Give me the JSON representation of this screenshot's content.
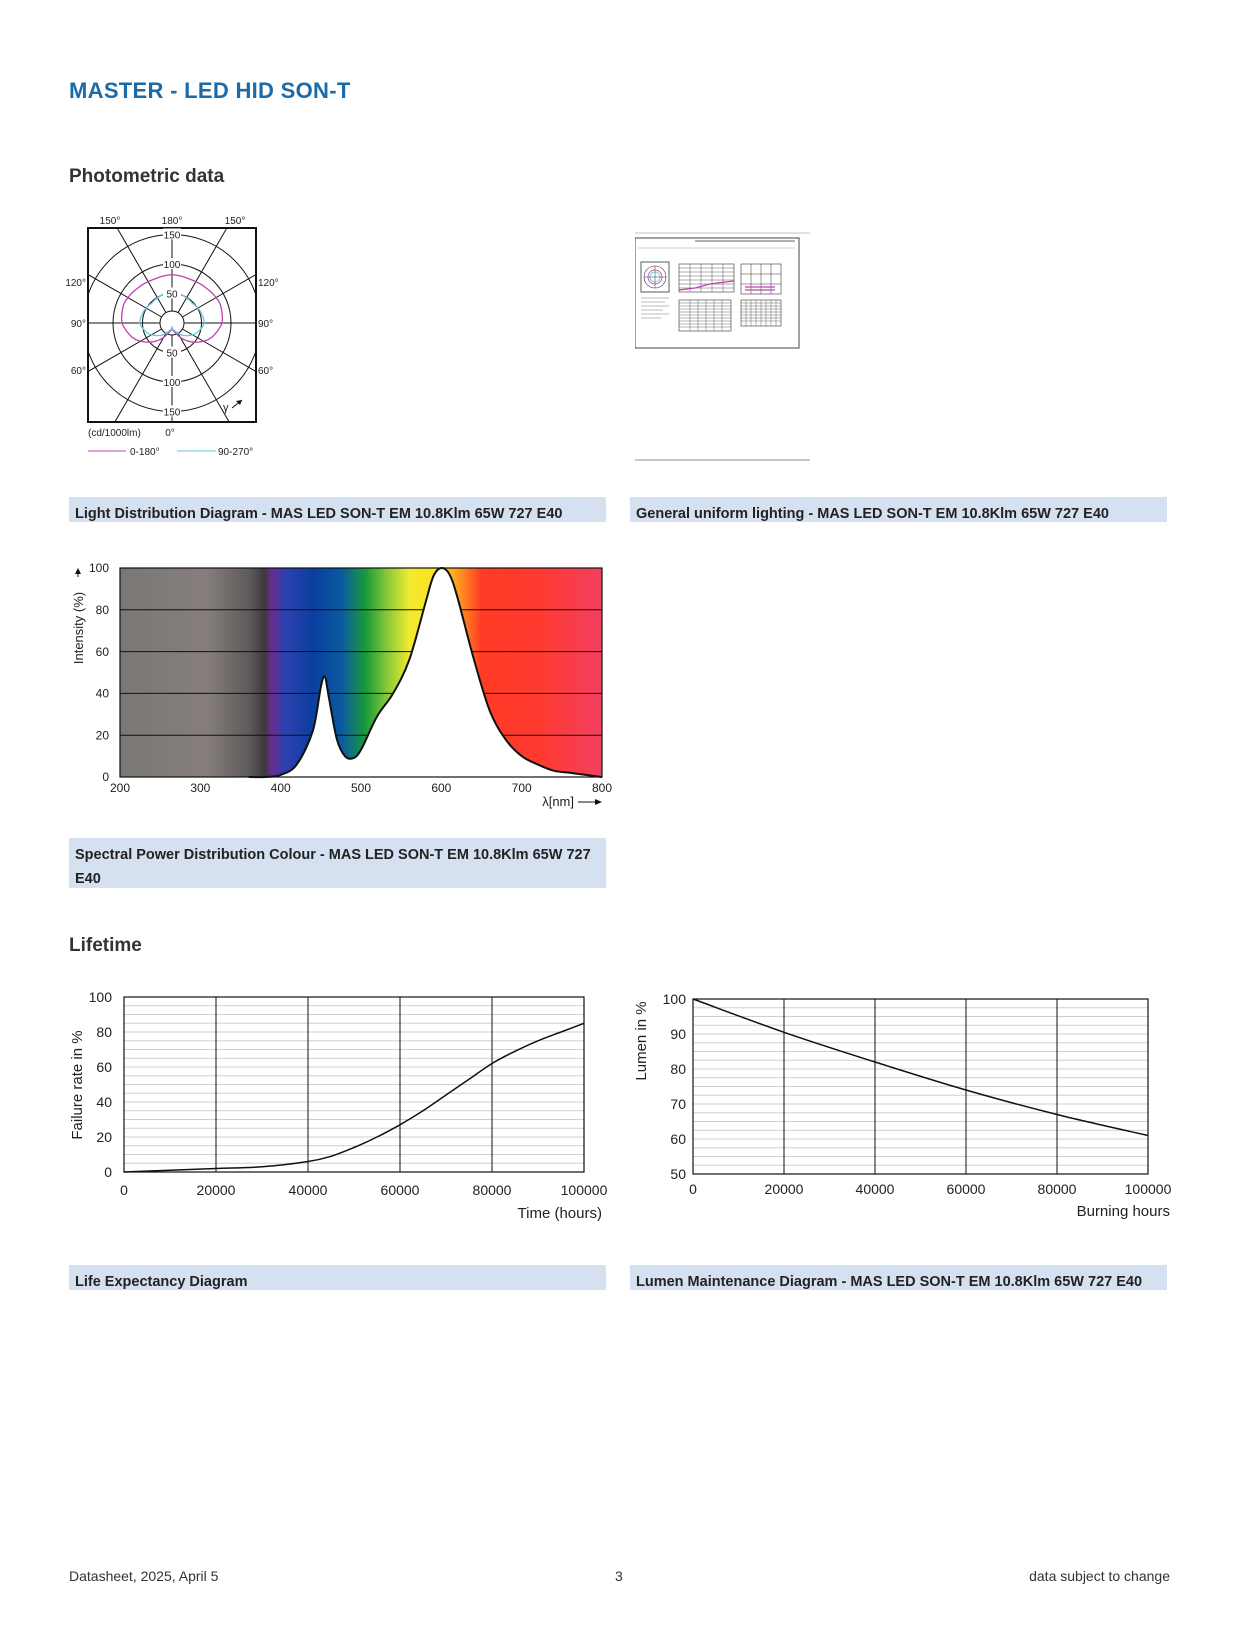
{
  "page": {
    "title": "MASTER - LED HID SON-T",
    "sections": {
      "photometric": "Photometric data",
      "lifetime": "Lifetime"
    },
    "captions": {
      "ldd": "Light Distribution Diagram - MAS LED SON-T EM 10.8Klm 65W 727 E40",
      "gul": "General uniform lighting - MAS LED SON-T EM 10.8Klm 65W 727 E40",
      "spd": "Spectral Power Distribution Colour - MAS LED SON-T EM 10.8Klm 65W 727 E40",
      "life": "Life Expectancy Diagram",
      "lumen": "Lumen Maintenance Diagram - MAS LED SON-T EM 10.8Klm 65W 727 E40"
    },
    "footer": {
      "left": "Datasheet, 2025, April 5",
      "center": "3",
      "right": "data subject to change"
    }
  },
  "chart_data": [
    {
      "type": "polar",
      "id": "light-distribution",
      "angle_labels": {
        "top_left": "150°",
        "top": "180°",
        "top_right": "150°",
        "left_upper": "120°",
        "right_upper": "120°",
        "left_mid": "90°",
        "right_mid": "90°",
        "left_lower": "60°",
        "right_lower": "60°",
        "bottom": "0°"
      },
      "radial_ticks": [
        50,
        100,
        150
      ],
      "radial_tick_labels": [
        "50",
        "100",
        "150"
      ],
      "unit_label": "(cd/1000lm)",
      "gamma_label": "γ",
      "series": [
        {
          "name": "0-180°",
          "color": "#c040b0",
          "radius_profile": [
            8,
            20,
            45,
            70,
            85,
            88,
            83,
            80,
            82
          ]
        },
        {
          "name": "90-270°",
          "color": "#60c8d8",
          "radius_profile": [
            8,
            15,
            30,
            45,
            55,
            52,
            48,
            50,
            55
          ]
        }
      ]
    },
    {
      "type": "area",
      "id": "spectral-power-distribution",
      "xlabel": "λ[nm]",
      "ylabel": "Intensity (%)",
      "xlim": [
        200,
        800
      ],
      "ylim": [
        0,
        100
      ],
      "xticks": [
        200,
        300,
        400,
        500,
        600,
        700,
        800
      ],
      "yticks": [
        0,
        20,
        40,
        60,
        80,
        100
      ],
      "x": [
        360,
        380,
        400,
        420,
        440,
        450,
        455,
        460,
        470,
        480,
        490,
        500,
        520,
        540,
        560,
        580,
        590,
        600,
        610,
        620,
        640,
        660,
        680,
        700,
        720,
        740,
        760,
        780,
        800
      ],
      "y": [
        0,
        0,
        1,
        6,
        22,
        43,
        48,
        38,
        18,
        10,
        9,
        13,
        29,
        40,
        56,
        83,
        96,
        100,
        97,
        86,
        57,
        32,
        18,
        10,
        6,
        3,
        2,
        1,
        0
      ]
    },
    {
      "type": "line",
      "id": "life-expectancy",
      "xlabel": "Time (hours)",
      "ylabel": "Failure rate in %",
      "xlim": [
        0,
        100000
      ],
      "ylim": [
        0,
        100
      ],
      "xticks": [
        0,
        20000,
        40000,
        60000,
        80000,
        100000
      ],
      "yticks": [
        0,
        20,
        40,
        60,
        80,
        100
      ],
      "x": [
        0,
        10000,
        20000,
        30000,
        40000,
        45000,
        50000,
        55000,
        60000,
        65000,
        70000,
        75000,
        80000,
        85000,
        90000,
        95000,
        100000
      ],
      "y": [
        0,
        1,
        2,
        3,
        6,
        9,
        14,
        20,
        27,
        35,
        44,
        53,
        62,
        69,
        75,
        80,
        85
      ]
    },
    {
      "type": "line",
      "id": "lumen-maintenance",
      "xlabel": "Burning hours",
      "ylabel": "Lumen in %",
      "xlim": [
        0,
        100000
      ],
      "ylim": [
        50,
        100
      ],
      "xticks": [
        0,
        20000,
        40000,
        60000,
        80000,
        100000
      ],
      "yticks": [
        50,
        60,
        70,
        80,
        90,
        100
      ],
      "x": [
        0,
        20000,
        40000,
        60000,
        80000,
        100000
      ],
      "y": [
        100,
        90.5,
        82,
        74,
        67,
        61
      ]
    }
  ]
}
